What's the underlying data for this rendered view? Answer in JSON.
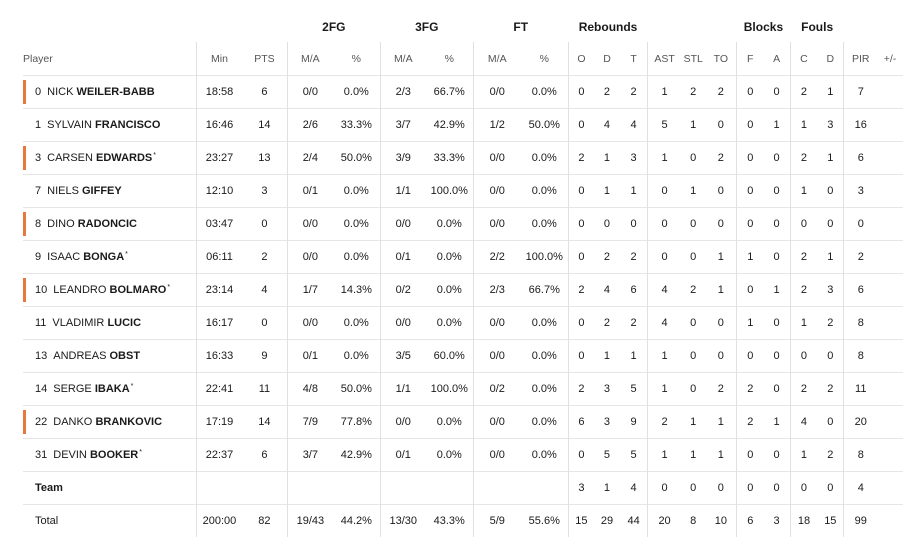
{
  "groups": {
    "fg2": "2FG",
    "fg3": "3FG",
    "ft": "FT",
    "reb": "Rebounds",
    "blk": "Blocks",
    "fouls": "Fouls"
  },
  "columns": {
    "player": "Player",
    "min": "Min",
    "pts": "PTS",
    "fg2_ma": "M/A",
    "fg2_pct": "%",
    "fg3_ma": "M/A",
    "fg3_pct": "%",
    "ft_ma": "M/A",
    "ft_pct": "%",
    "o": "O",
    "d": "D",
    "t": "T",
    "ast": "AST",
    "stl": "STL",
    "to": "TO",
    "bf": "F",
    "ba": "A",
    "fc": "C",
    "fd": "D",
    "pir": "PIR",
    "pm": "+/-"
  },
  "players": [
    {
      "marked": true,
      "num": "0",
      "first": "NICK",
      "last": "WEILER-BABB",
      "star": "",
      "min": "18:58",
      "pts": "6",
      "fg2": "0/0",
      "fg2p": "0.0%",
      "fg3": "2/3",
      "fg3p": "66.7%",
      "ft": "0/0",
      "ftp": "0.0%",
      "o": "0",
      "d": "2",
      "t": "2",
      "ast": "1",
      "stl": "2",
      "to": "2",
      "bf": "0",
      "ba": "0",
      "fc": "2",
      "fd": "1",
      "pir": "7",
      "pm": ""
    },
    {
      "marked": false,
      "num": "1",
      "first": "SYLVAIN",
      "last": "FRANCISCO",
      "star": "",
      "min": "16:46",
      "pts": "14",
      "fg2": "2/6",
      "fg2p": "33.3%",
      "fg3": "3/7",
      "fg3p": "42.9%",
      "ft": "1/2",
      "ftp": "50.0%",
      "o": "0",
      "d": "4",
      "t": "4",
      "ast": "5",
      "stl": "1",
      "to": "0",
      "bf": "0",
      "ba": "1",
      "fc": "1",
      "fd": "3",
      "pir": "16",
      "pm": ""
    },
    {
      "marked": true,
      "num": "3",
      "first": "CARSEN",
      "last": "EDWARDS",
      "star": "*",
      "min": "23:27",
      "pts": "13",
      "fg2": "2/4",
      "fg2p": "50.0%",
      "fg3": "3/9",
      "fg3p": "33.3%",
      "ft": "0/0",
      "ftp": "0.0%",
      "o": "2",
      "d": "1",
      "t": "3",
      "ast": "1",
      "stl": "0",
      "to": "2",
      "bf": "0",
      "ba": "0",
      "fc": "2",
      "fd": "1",
      "pir": "6",
      "pm": ""
    },
    {
      "marked": false,
      "num": "7",
      "first": "NIELS",
      "last": "GIFFEY",
      "star": "",
      "min": "12:10",
      "pts": "3",
      "fg2": "0/1",
      "fg2p": "0.0%",
      "fg3": "1/1",
      "fg3p": "100.0%",
      "ft": "0/0",
      "ftp": "0.0%",
      "o": "0",
      "d": "1",
      "t": "1",
      "ast": "0",
      "stl": "1",
      "to": "0",
      "bf": "0",
      "ba": "0",
      "fc": "1",
      "fd": "0",
      "pir": "3",
      "pm": ""
    },
    {
      "marked": true,
      "num": "8",
      "first": "DINO",
      "last": "RADONCIC",
      "star": "",
      "min": "03:47",
      "pts": "0",
      "fg2": "0/0",
      "fg2p": "0.0%",
      "fg3": "0/0",
      "fg3p": "0.0%",
      "ft": "0/0",
      "ftp": "0.0%",
      "o": "0",
      "d": "0",
      "t": "0",
      "ast": "0",
      "stl": "0",
      "to": "0",
      "bf": "0",
      "ba": "0",
      "fc": "0",
      "fd": "0",
      "pir": "0",
      "pm": ""
    },
    {
      "marked": false,
      "num": "9",
      "first": "ISAAC",
      "last": "BONGA",
      "star": "*",
      "min": "06:11",
      "pts": "2",
      "fg2": "0/0",
      "fg2p": "0.0%",
      "fg3": "0/1",
      "fg3p": "0.0%",
      "ft": "2/2",
      "ftp": "100.0%",
      "o": "0",
      "d": "2",
      "t": "2",
      "ast": "0",
      "stl": "0",
      "to": "1",
      "bf": "1",
      "ba": "0",
      "fc": "2",
      "fd": "1",
      "pir": "2",
      "pm": ""
    },
    {
      "marked": true,
      "num": "10",
      "first": "LEANDRO",
      "last": "BOLMARO",
      "star": "*",
      "min": "23:14",
      "pts": "4",
      "fg2": "1/7",
      "fg2p": "14.3%",
      "fg3": "0/2",
      "fg3p": "0.0%",
      "ft": "2/3",
      "ftp": "66.7%",
      "o": "2",
      "d": "4",
      "t": "6",
      "ast": "4",
      "stl": "2",
      "to": "1",
      "bf": "0",
      "ba": "1",
      "fc": "2",
      "fd": "3",
      "pir": "6",
      "pm": ""
    },
    {
      "marked": false,
      "num": "11",
      "first": "VLADIMIR",
      "last": "LUCIC",
      "star": "",
      "min": "16:17",
      "pts": "0",
      "fg2": "0/0",
      "fg2p": "0.0%",
      "fg3": "0/0",
      "fg3p": "0.0%",
      "ft": "0/0",
      "ftp": "0.0%",
      "o": "0",
      "d": "2",
      "t": "2",
      "ast": "4",
      "stl": "0",
      "to": "0",
      "bf": "1",
      "ba": "0",
      "fc": "1",
      "fd": "2",
      "pir": "8",
      "pm": ""
    },
    {
      "marked": false,
      "num": "13",
      "first": "ANDREAS",
      "last": "OBST",
      "star": "",
      "min": "16:33",
      "pts": "9",
      "fg2": "0/1",
      "fg2p": "0.0%",
      "fg3": "3/5",
      "fg3p": "60.0%",
      "ft": "0/0",
      "ftp": "0.0%",
      "o": "0",
      "d": "1",
      "t": "1",
      "ast": "1",
      "stl": "0",
      "to": "0",
      "bf": "0",
      "ba": "0",
      "fc": "0",
      "fd": "0",
      "pir": "8",
      "pm": ""
    },
    {
      "marked": false,
      "num": "14",
      "first": "SERGE",
      "last": "IBAKA",
      "star": "*",
      "min": "22:41",
      "pts": "11",
      "fg2": "4/8",
      "fg2p": "50.0%",
      "fg3": "1/1",
      "fg3p": "100.0%",
      "ft": "0/2",
      "ftp": "0.0%",
      "o": "2",
      "d": "3",
      "t": "5",
      "ast": "1",
      "stl": "0",
      "to": "2",
      "bf": "2",
      "ba": "0",
      "fc": "2",
      "fd": "2",
      "pir": "11",
      "pm": ""
    },
    {
      "marked": true,
      "num": "22",
      "first": "DANKO",
      "last": "BRANKOVIC",
      "star": "",
      "min": "17:19",
      "pts": "14",
      "fg2": "7/9",
      "fg2p": "77.8%",
      "fg3": "0/0",
      "fg3p": "0.0%",
      "ft": "0/0",
      "ftp": "0.0%",
      "o": "6",
      "d": "3",
      "t": "9",
      "ast": "2",
      "stl": "1",
      "to": "1",
      "bf": "2",
      "ba": "1",
      "fc": "4",
      "fd": "0",
      "pir": "20",
      "pm": ""
    },
    {
      "marked": false,
      "num": "31",
      "first": "DEVIN",
      "last": "BOOKER",
      "star": "*",
      "min": "22:37",
      "pts": "6",
      "fg2": "3/7",
      "fg2p": "42.9%",
      "fg3": "0/1",
      "fg3p": "0.0%",
      "ft": "0/0",
      "ftp": "0.0%",
      "o": "0",
      "d": "5",
      "t": "5",
      "ast": "1",
      "stl": "1",
      "to": "1",
      "bf": "0",
      "ba": "0",
      "fc": "1",
      "fd": "2",
      "pir": "8",
      "pm": ""
    }
  ],
  "team": {
    "label": "Team",
    "min": "",
    "pts": "",
    "fg2": "",
    "fg2p": "",
    "fg3": "",
    "fg3p": "",
    "ft": "",
    "ftp": "",
    "o": "3",
    "d": "1",
    "t": "4",
    "ast": "0",
    "stl": "0",
    "to": "0",
    "bf": "0",
    "ba": "0",
    "fc": "0",
    "fd": "0",
    "pir": "4",
    "pm": ""
  },
  "total": {
    "label": "Total",
    "min": "200:00",
    "pts": "82",
    "fg2": "19/43",
    "fg2p": "44.2%",
    "fg3": "13/30",
    "fg3p": "43.3%",
    "ft": "5/9",
    "ftp": "55.6%",
    "o": "15",
    "d": "29",
    "t": "44",
    "ast": "20",
    "stl": "8",
    "to": "10",
    "bf": "6",
    "ba": "3",
    "fc": "18",
    "fd": "15",
    "pir": "99",
    "pm": ""
  },
  "colors": {
    "marker": "#e8773c",
    "border": "#e0e0e0"
  }
}
